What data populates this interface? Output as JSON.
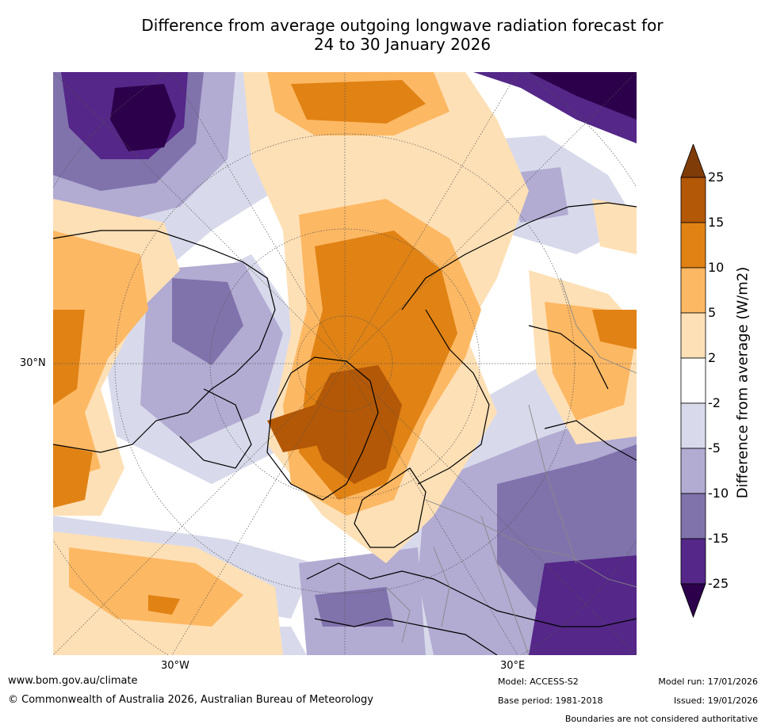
{
  "title": {
    "line1": "Difference from average outgoing longwave radiation forecast for",
    "line2": "24 to 30 January 2026"
  },
  "map": {
    "lat_label": "30°N",
    "lon_labels": [
      "30°W",
      "30°E"
    ]
  },
  "colorbar": {
    "title": "Difference from average (W/m2)",
    "ticks": [
      "25",
      "15",
      "10",
      "5",
      "2",
      "-2",
      "-5",
      "-10",
      "-15",
      "-25"
    ],
    "colors": {
      "over": "#7f3b08",
      "b15_25": "#b35806",
      "b10_15": "#e08214",
      "b5_10": "#fdb863",
      "b2_5": "#fee0b6",
      "neutral": "#ffffff",
      "bm2_m5": "#d8daeb",
      "bm5_m10": "#b2abd2",
      "bm10_m15": "#8073ac",
      "bm15_m25": "#542788",
      "under": "#2d004b"
    }
  },
  "footer": {
    "website": "www.bom.gov.au/climate",
    "copyright": "© Commonwealth of Australia 2026, Australian Bureau of Meteorology",
    "model": "Model: ACCESS-S2",
    "base_period": "Base period: 1981-2018",
    "model_run": "Model run: 17/01/2026",
    "issued": "Issued: 19/01/2026",
    "disclaimer": "Boundaries are not considered authoritative"
  }
}
